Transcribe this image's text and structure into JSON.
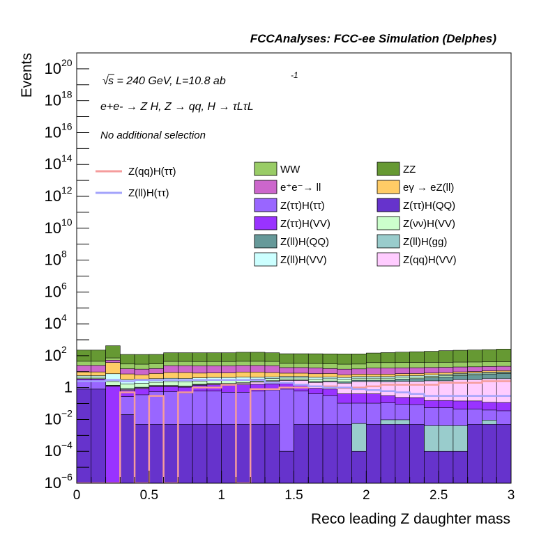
{
  "header": {
    "title": "FCCAnalyses: FCC-ee Simulation (Delphes)"
  },
  "chart_data": {
    "type": "bar",
    "stacked": true,
    "title": "",
    "xlabel": "Reco leading Z daughter mass",
    "ylabel": "Events",
    "xlim": [
      0,
      3
    ],
    "ylim": [
      1e-06,
      1e+21
    ],
    "log_y": true,
    "grid": false,
    "x_ticks": [
      "0",
      "0.5",
      "1",
      "1.5",
      "2",
      "2.5",
      "3"
    ],
    "y_ticks": [
      {
        "base": "10",
        "exp": "−6"
      },
      {
        "base": "10",
        "exp": "−4"
      },
      {
        "base": "10",
        "exp": "−2"
      },
      {
        "base": "1",
        "exp": ""
      },
      {
        "base": "10",
        "exp": "2"
      },
      {
        "base": "10",
        "exp": "4"
      },
      {
        "base": "10",
        "exp": "6"
      },
      {
        "base": "10",
        "exp": "8"
      },
      {
        "base": "10",
        "exp": "10"
      },
      {
        "base": "10",
        "exp": "12"
      },
      {
        "base": "10",
        "exp": "14"
      },
      {
        "base": "10",
        "exp": "16"
      },
      {
        "base": "10",
        "exp": "18"
      },
      {
        "base": "10",
        "exp": "20"
      }
    ],
    "annotations": {
      "sqrt_s": "s = 240 GeV, L=10.8 ab",
      "lumi_exp": "-1",
      "process": "e+e- → Z H, Z → qq, H → τLτL",
      "selection": "No additional selection"
    },
    "legend_placement": "center",
    "legend_lines": [
      {
        "label": "Z(qq)H(ττ)",
        "color": "#f59c9c"
      },
      {
        "label": "Z(ll)H(ττ)",
        "color": "#a3a3fb"
      }
    ],
    "legend_fills": [
      {
        "label": "WW",
        "color": "#99cc66"
      },
      {
        "label": "ZZ",
        "color": "#669933"
      },
      {
        "label": "e⁺e⁻→ ll",
        "color": "#cc66cc"
      },
      {
        "label": "eγ → eZ(ll)",
        "color": "#ffcc66"
      },
      {
        "label": "Z(ττ)H(ττ)",
        "color": "#9966ff"
      },
      {
        "label": "Z(ττ)H(QQ)",
        "color": "#6633cc"
      },
      {
        "label": "Z(ττ)H(VV)",
        "color": "#9933ff"
      },
      {
        "label": "Z(νν)H(VV)",
        "color": "#ccffcc"
      },
      {
        "label": "Z(ll)H(QQ)",
        "color": "#669999"
      },
      {
        "label": "Z(ll)H(gg)",
        "color": "#99cccc"
      },
      {
        "label": "Z(ll)H(VV)",
        "color": "#ccffff"
      },
      {
        "label": "Z(qq)H(VV)",
        "color": "#ffccff"
      }
    ],
    "bin_edges": [
      0,
      0.1,
      0.2,
      0.3,
      0.4,
      0.5,
      0.6,
      0.7,
      0.8,
      0.9,
      1.0,
      1.1,
      1.2,
      1.3,
      1.4,
      1.5,
      1.6,
      1.7,
      1.8,
      1.9,
      2.0,
      2.1,
      2.2,
      2.3,
      2.4,
      2.5,
      2.6,
      2.7,
      2.8,
      2.9,
      3.0
    ],
    "stack_layers": [
      {
        "name": "Z(ττ)H(QQ)",
        "color": "#6633cc",
        "values": [
          0.8,
          0.8,
          1e-06,
          0.02,
          0.005,
          0.005,
          0.005,
          0.005,
          0.005,
          0.005,
          0.005,
          0.005,
          0.005,
          0.005,
          0.0001,
          0.005,
          0.005,
          0.005,
          0.005,
          0.0001,
          0.005,
          0.005,
          0.005,
          0.005,
          0.0001,
          0.0001,
          0.0001,
          0.005,
          0.005,
          0.005
        ]
      },
      {
        "name": "Z(ll)H(gg)",
        "color": "#99cccc",
        "values": [
          0,
          0,
          0,
          0,
          0,
          0,
          0,
          0,
          0,
          0,
          0,
          0,
          0,
          0,
          0,
          0,
          0,
          0,
          0,
          0.0055,
          0,
          0.0045,
          0.0045,
          0,
          0.004,
          0.004,
          0.004,
          0,
          0.004,
          0
        ]
      },
      {
        "name": "Z(ττ)H(ττ)",
        "color": "#9966ff",
        "values": [
          1.8,
          1.8,
          0,
          0.25,
          0.35,
          0.55,
          0.55,
          0.45,
          0.6,
          0.6,
          0.5,
          0.5,
          0.6,
          0.7,
          0.8,
          0.6,
          0.4,
          0.3,
          0.1,
          0.1,
          0.1,
          0.1,
          0.08,
          0.08,
          0.05,
          0.05,
          0.04,
          0.04,
          0.03,
          0.03
        ]
      },
      {
        "name": "Z(ττ)H(VV)",
        "color": "#9933ff",
        "values": [
          0.8,
          0.8,
          1.2,
          0.4,
          0.5,
          0.6,
          0.6,
          0.6,
          0.8,
          0.9,
          0.9,
          1.0,
          1.0,
          1.0,
          1.0,
          1.0,
          0.5,
          0.5,
          0.3,
          0.3,
          0.3,
          0.2,
          0.15,
          0.15,
          0.1,
          0.1,
          0.1,
          0.1,
          0.08,
          0.08
        ]
      },
      {
        "name": "Z(qq)H(VV)",
        "color": "#ffccff",
        "values": [
          0.1,
          0.1,
          0.1,
          0.1,
          0.1,
          0.1,
          0.1,
          0.1,
          0.1,
          0.2,
          0.3,
          0.4,
          0.6,
          0.8,
          1.0,
          1.2,
          1.2,
          1.5,
          1.5,
          2.0,
          2.0,
          2.0,
          2.2,
          2.2,
          2.5,
          2.5,
          3.0,
          3.0,
          3.5,
          3.5
        ]
      },
      {
        "name": "Z(ll)H(QQ)",
        "color": "#669999",
        "values": [
          0.1,
          0.1,
          0.1,
          0.1,
          0.1,
          0.1,
          0.1,
          0.1,
          0.1,
          0.1,
          0.1,
          0.1,
          0.2,
          0.2,
          0.2,
          0.2,
          0.3,
          0.3,
          0.4,
          0.5,
          0.5,
          0.6,
          1.0,
          1.2,
          1.5,
          2.0,
          2.5,
          3.0,
          3.5,
          4.0
        ]
      },
      {
        "name": "Z(νν)H(VV)",
        "color": "#ccffcc",
        "values": [
          1.0,
          1.0,
          1.0,
          0.8,
          0.8,
          0.8,
          1.0,
          1.0,
          1.0,
          1.0,
          1.0,
          1.0,
          1.0,
          1.0,
          1.0,
          1.0,
          1.0,
          1.0,
          1.0,
          1.0,
          1.0,
          1.0,
          1.0,
          1.0,
          1.0,
          1.0,
          1.0,
          1.0,
          1.0,
          1.0
        ]
      },
      {
        "name": "Z(ll)H(VV)",
        "color": "#ccffff",
        "values": [
          1.0,
          1.0,
          5.0,
          1.5,
          1.5,
          1.5,
          1.5,
          1.5,
          1.5,
          1.5,
          1.5,
          1.5,
          1.0,
          1.0,
          1.0,
          1.0,
          1.0,
          1.0,
          1.0,
          1.0,
          1.0,
          1.0,
          1.0,
          1.0,
          1.0,
          1.0,
          1.0,
          1.0,
          1.0,
          1.0
        ]
      },
      {
        "name": "eγ → eZ(ll)",
        "color": "#ffcc66",
        "values": [
          4.0,
          4.0,
          30.0,
          4.0,
          3.0,
          4.0,
          5.0,
          5.0,
          4.0,
          4.0,
          4.0,
          5.0,
          5.0,
          4.0,
          3.0,
          3.0,
          3.0,
          3.0,
          2.0,
          2.0,
          2.0,
          2.0,
          2.0,
          2.0,
          2.0,
          2.0,
          2.0,
          2.0,
          2.0,
          2.0
        ]
      },
      {
        "name": "e⁺e⁻→ ll",
        "color": "#cc66cc",
        "values": [
          15,
          15,
          15,
          8,
          8,
          8,
          15,
          15,
          15,
          15,
          15,
          15,
          15,
          15,
          10,
          10,
          10,
          8,
          8,
          8,
          10,
          10,
          10,
          10,
          10,
          10,
          10,
          10,
          10,
          10
        ]
      },
      {
        "name": "WW",
        "color": "#99cc66",
        "values": [
          20,
          20,
          20,
          15,
          15,
          15,
          20,
          20,
          20,
          20,
          20,
          20,
          20,
          20,
          15,
          15,
          15,
          15,
          15,
          15,
          20,
          20,
          20,
          20,
          20,
          20,
          20,
          20,
          20,
          20
        ]
      },
      {
        "name": "ZZ",
        "color": "#669933",
        "values": [
          180,
          180,
          350,
          90,
          90,
          90,
          110,
          110,
          110,
          110,
          110,
          120,
          120,
          110,
          100,
          100,
          100,
          100,
          100,
          100,
          110,
          120,
          130,
          140,
          150,
          170,
          180,
          190,
          200,
          220
        ]
      }
    ],
    "overlay_series": [
      {
        "name": "Z(qq)H(ττ)",
        "color": "#f59c9c",
        "values": [
          0,
          0,
          0,
          0.5,
          0,
          0.3,
          0,
          0.5,
          1.0,
          1.0,
          1.5,
          0,
          0.8,
          0.8,
          1.0,
          1.0,
          1.2,
          1.2,
          0.9,
          1.0,
          1.2,
          1.5,
          1.5,
          1.5,
          1.5,
          2.0,
          2.0,
          2.0,
          2.5,
          2.5
        ]
      },
      {
        "name": "Z(ll)H(ττ)",
        "color": "#a3a3fb",
        "values": [
          2.5,
          2.5,
          3.0,
          2.5,
          3.0,
          3.0,
          3.0,
          3.0,
          3.0,
          3.0,
          3.0,
          3.0,
          3.0,
          2.0,
          2.0,
          1.5,
          1.2,
          1.0,
          1.0,
          0.8,
          0.7,
          0.6,
          0.5,
          0.4,
          0.3,
          0.3,
          0.3,
          0.3,
          0.3,
          0.3
        ]
      }
    ]
  }
}
